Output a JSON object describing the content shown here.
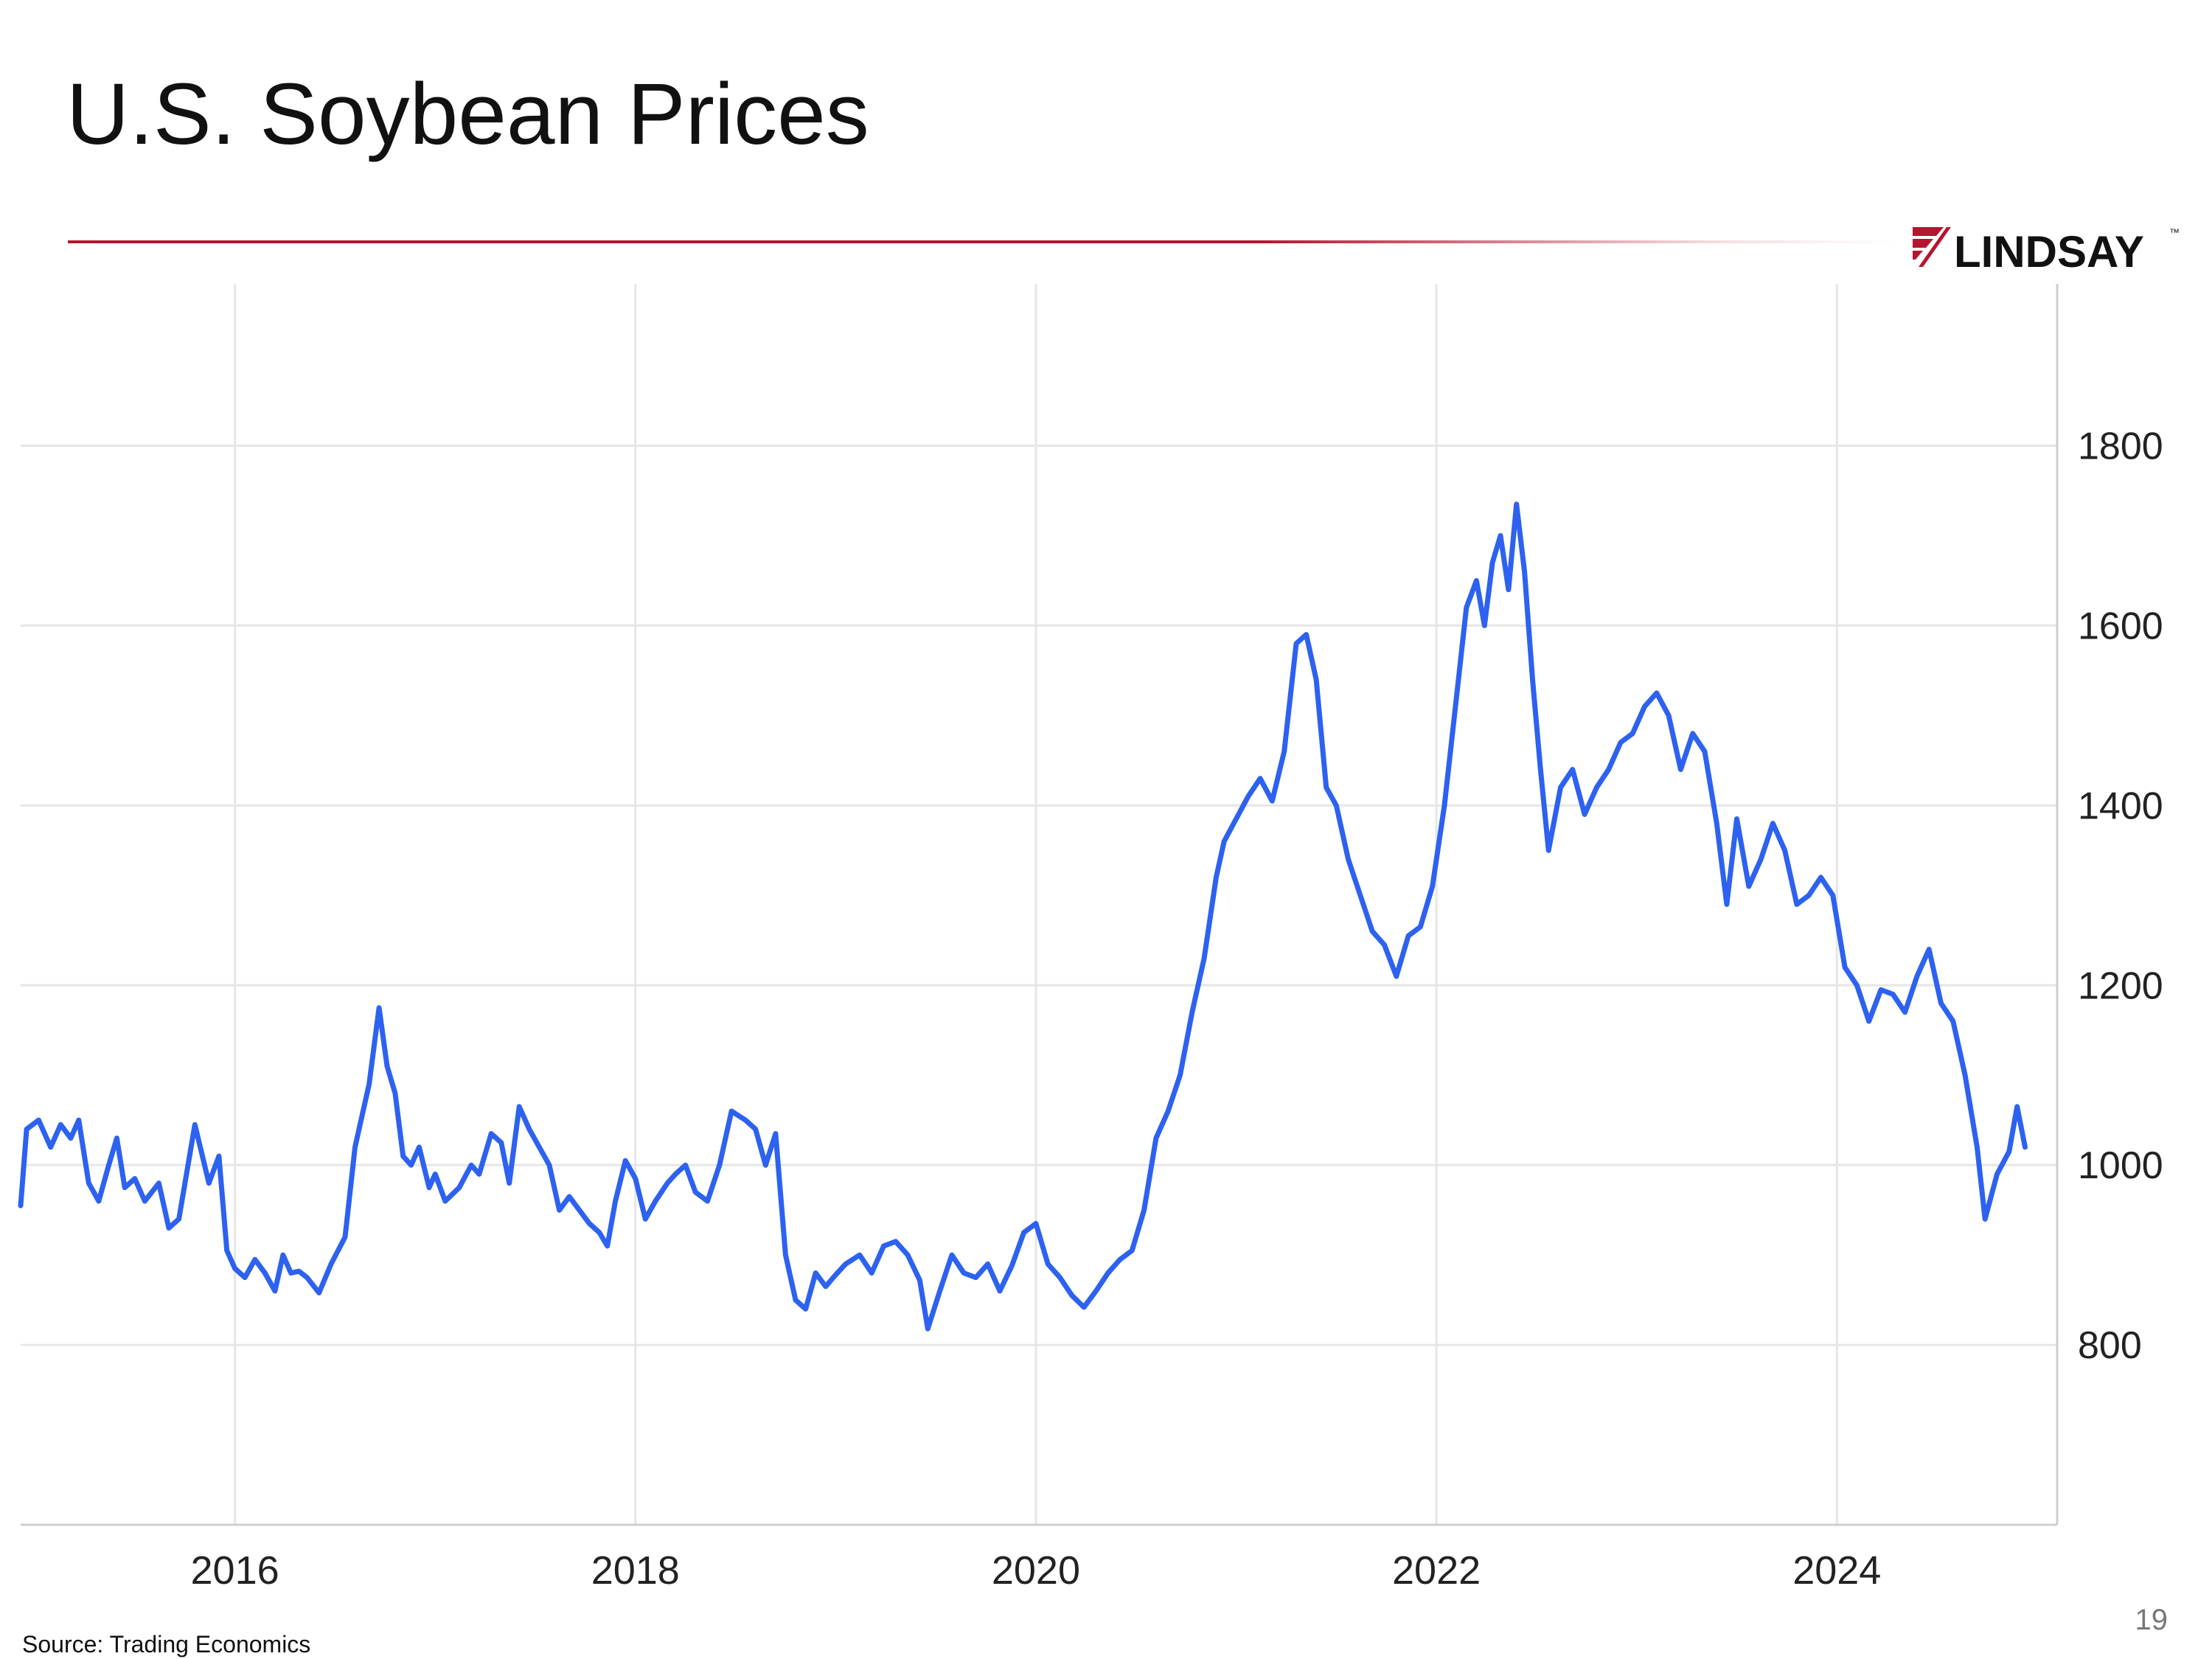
{
  "slide": {
    "title": "U.S. Soybean Prices",
    "source": "Source: Trading Economics",
    "page_number": "19",
    "logo_text": "LINDSAY",
    "logo_tm": "™",
    "accent_color": "#b5152e"
  },
  "chart_data": {
    "type": "line",
    "title": "",
    "xlabel": "",
    "ylabel": "",
    "y_axis_side": "right",
    "xlim": [
      2014.93,
      2025.1
    ],
    "ylim": [
      600,
      1980
    ],
    "y_ticks": [
      800,
      1000,
      1200,
      1400,
      1600,
      1800
    ],
    "x_ticks": [
      2016,
      2018,
      2020,
      2022,
      2024
    ],
    "grid": true,
    "line_color": "#2d62f0",
    "series": [
      {
        "points": [
          [
            2014.93,
            955
          ],
          [
            2014.96,
            1040
          ],
          [
            2015.02,
            1050
          ],
          [
            2015.08,
            1020
          ],
          [
            2015.13,
            1045
          ],
          [
            2015.18,
            1030
          ],
          [
            2015.22,
            1050
          ],
          [
            2015.27,
            980
          ],
          [
            2015.32,
            960
          ],
          [
            2015.37,
            1000
          ],
          [
            2015.41,
            1030
          ],
          [
            2015.45,
            975
          ],
          [
            2015.5,
            985
          ],
          [
            2015.55,
            960
          ],
          [
            2015.62,
            980
          ],
          [
            2015.67,
            930
          ],
          [
            2015.72,
            940
          ],
          [
            2015.8,
            1045
          ],
          [
            2015.87,
            980
          ],
          [
            2015.92,
            1010
          ],
          [
            2015.96,
            905
          ],
          [
            2016.0,
            885
          ],
          [
            2016.05,
            875
          ],
          [
            2016.1,
            895
          ],
          [
            2016.15,
            880
          ],
          [
            2016.2,
            860
          ],
          [
            2016.24,
            900
          ],
          [
            2016.28,
            880
          ],
          [
            2016.32,
            882
          ],
          [
            2016.36,
            875
          ],
          [
            2016.42,
            858
          ],
          [
            2016.48,
            890
          ],
          [
            2016.55,
            920
          ],
          [
            2016.6,
            1020
          ],
          [
            2016.67,
            1090
          ],
          [
            2016.72,
            1175
          ],
          [
            2016.76,
            1110
          ],
          [
            2016.8,
            1080
          ],
          [
            2016.84,
            1010
          ],
          [
            2016.88,
            1000
          ],
          [
            2016.92,
            1020
          ],
          [
            2016.97,
            975
          ],
          [
            2017.0,
            990
          ],
          [
            2017.05,
            960
          ],
          [
            2017.12,
            975
          ],
          [
            2017.18,
            1000
          ],
          [
            2017.22,
            990
          ],
          [
            2017.28,
            1035
          ],
          [
            2017.33,
            1025
          ],
          [
            2017.37,
            980
          ],
          [
            2017.42,
            1065
          ],
          [
            2017.47,
            1040
          ],
          [
            2017.52,
            1020
          ],
          [
            2017.57,
            1000
          ],
          [
            2017.62,
            950
          ],
          [
            2017.67,
            965
          ],
          [
            2017.72,
            950
          ],
          [
            2017.77,
            935
          ],
          [
            2017.82,
            925
          ],
          [
            2017.86,
            910
          ],
          [
            2017.9,
            960
          ],
          [
            2017.95,
            1005
          ],
          [
            2018.0,
            985
          ],
          [
            2018.05,
            940
          ],
          [
            2018.1,
            960
          ],
          [
            2018.16,
            980
          ],
          [
            2018.2,
            990
          ],
          [
            2018.25,
            1000
          ],
          [
            2018.3,
            970
          ],
          [
            2018.36,
            960
          ],
          [
            2018.42,
            1000
          ],
          [
            2018.48,
            1060
          ],
          [
            2018.55,
            1050
          ],
          [
            2018.6,
            1040
          ],
          [
            2018.65,
            1000
          ],
          [
            2018.7,
            1035
          ],
          [
            2018.75,
            900
          ],
          [
            2018.8,
            850
          ],
          [
            2018.85,
            840
          ],
          [
            2018.9,
            880
          ],
          [
            2018.95,
            865
          ],
          [
            2019.0,
            878
          ],
          [
            2019.05,
            890
          ],
          [
            2019.12,
            900
          ],
          [
            2019.18,
            880
          ],
          [
            2019.24,
            910
          ],
          [
            2019.3,
            915
          ],
          [
            2019.36,
            900
          ],
          [
            2019.42,
            872
          ],
          [
            2019.46,
            818
          ],
          [
            2019.52,
            860
          ],
          [
            2019.58,
            900
          ],
          [
            2019.64,
            880
          ],
          [
            2019.7,
            875
          ],
          [
            2019.76,
            890
          ],
          [
            2019.82,
            860
          ],
          [
            2019.88,
            888
          ],
          [
            2019.94,
            925
          ],
          [
            2020.0,
            935
          ],
          [
            2020.06,
            890
          ],
          [
            2020.12,
            875
          ],
          [
            2020.18,
            855
          ],
          [
            2020.24,
            842
          ],
          [
            2020.3,
            860
          ],
          [
            2020.36,
            880
          ],
          [
            2020.42,
            895
          ],
          [
            2020.48,
            905
          ],
          [
            2020.54,
            950
          ],
          [
            2020.6,
            1030
          ],
          [
            2020.66,
            1060
          ],
          [
            2020.72,
            1100
          ],
          [
            2020.78,
            1170
          ],
          [
            2020.84,
            1230
          ],
          [
            2020.9,
            1320
          ],
          [
            2020.94,
            1360
          ],
          [
            2021.0,
            1385
          ],
          [
            2021.06,
            1410
          ],
          [
            2021.12,
            1430
          ],
          [
            2021.18,
            1405
          ],
          [
            2021.24,
            1460
          ],
          [
            2021.3,
            1580
          ],
          [
            2021.35,
            1590
          ],
          [
            2021.4,
            1540
          ],
          [
            2021.45,
            1420
          ],
          [
            2021.5,
            1400
          ],
          [
            2021.56,
            1340
          ],
          [
            2021.62,
            1300
          ],
          [
            2021.68,
            1260
          ],
          [
            2021.74,
            1245
          ],
          [
            2021.8,
            1210
          ],
          [
            2021.86,
            1255
          ],
          [
            2021.92,
            1265
          ],
          [
            2021.98,
            1310
          ],
          [
            2022.04,
            1400
          ],
          [
            2022.1,
            1520
          ],
          [
            2022.15,
            1620
          ],
          [
            2022.2,
            1650
          ],
          [
            2022.24,
            1600
          ],
          [
            2022.28,
            1670
          ],
          [
            2022.32,
            1700
          ],
          [
            2022.36,
            1640
          ],
          [
            2022.4,
            1735
          ],
          [
            2022.44,
            1660
          ],
          [
            2022.48,
            1540
          ],
          [
            2022.52,
            1440
          ],
          [
            2022.56,
            1350
          ],
          [
            2022.62,
            1420
          ],
          [
            2022.68,
            1440
          ],
          [
            2022.74,
            1390
          ],
          [
            2022.8,
            1420
          ],
          [
            2022.86,
            1440
          ],
          [
            2022.92,
            1470
          ],
          [
            2022.98,
            1480
          ],
          [
            2023.04,
            1510
          ],
          [
            2023.1,
            1525
          ],
          [
            2023.16,
            1500
          ],
          [
            2023.22,
            1440
          ],
          [
            2023.28,
            1480
          ],
          [
            2023.34,
            1460
          ],
          [
            2023.4,
            1380
          ],
          [
            2023.45,
            1290
          ],
          [
            2023.5,
            1385
          ],
          [
            2023.56,
            1310
          ],
          [
            2023.62,
            1340
          ],
          [
            2023.68,
            1380
          ],
          [
            2023.74,
            1350
          ],
          [
            2023.8,
            1290
          ],
          [
            2023.86,
            1300
          ],
          [
            2023.92,
            1320
          ],
          [
            2023.98,
            1300
          ],
          [
            2024.04,
            1220
          ],
          [
            2024.1,
            1200
          ],
          [
            2024.16,
            1160
          ],
          [
            2024.22,
            1195
          ],
          [
            2024.28,
            1190
          ],
          [
            2024.34,
            1170
          ],
          [
            2024.4,
            1210
          ],
          [
            2024.46,
            1240
          ],
          [
            2024.52,
            1180
          ],
          [
            2024.58,
            1160
          ],
          [
            2024.64,
            1100
          ],
          [
            2024.7,
            1020
          ],
          [
            2024.74,
            940
          ],
          [
            2024.8,
            990
          ],
          [
            2024.86,
            1015
          ],
          [
            2024.9,
            1065
          ],
          [
            2024.94,
            1020
          ]
        ]
      }
    ]
  }
}
